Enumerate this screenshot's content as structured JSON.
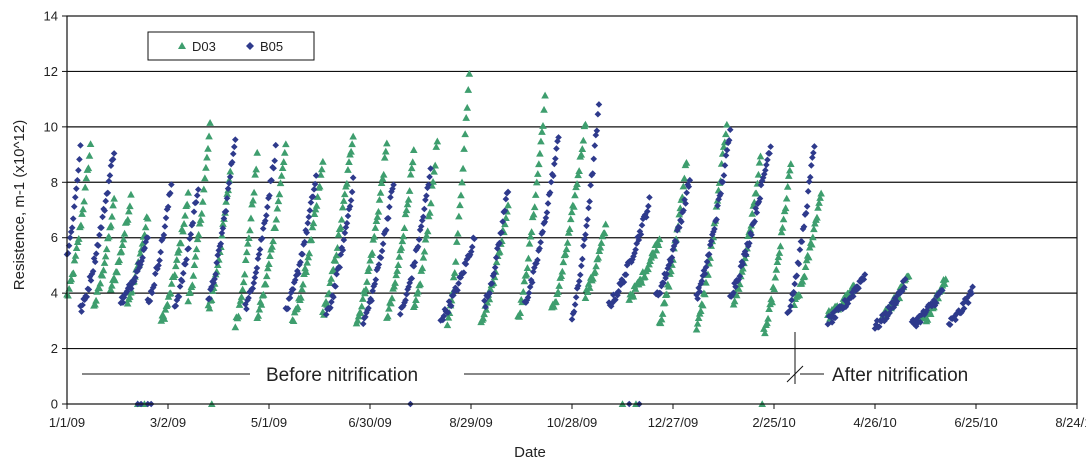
{
  "chart_data": {
    "type": "scatter",
    "title": "",
    "xlabel": "Date",
    "ylabel": "Resistence, m-1 (x10^12)",
    "x_tick_labels": [
      "1/1/09",
      "3/2/09",
      "5/1/09",
      "6/30/09",
      "8/29/09",
      "10/28/09",
      "12/27/09",
      "2/25/10",
      "4/26/10",
      "6/25/10",
      "8/24/10"
    ],
    "x_tick_days": [
      0,
      60,
      120,
      180,
      240,
      300,
      360,
      420,
      480,
      540,
      600
    ],
    "y_ticks": [
      0,
      2,
      4,
      6,
      8,
      10,
      12,
      14
    ],
    "ylim": [
      0,
      14
    ],
    "grid": "horizontal",
    "legend_position": "top-left",
    "annotations": {
      "before": "Before nitrification",
      "after": "After nitrification"
    },
    "colors": {
      "D03": "#3e9e6e",
      "B05": "#2e3a8c"
    },
    "series": [
      {
        "name": "D03",
        "marker": "triangle",
        "cycles": [
          [
            0,
            3.9,
            14,
            9.3
          ],
          [
            16,
            3.6,
            28,
            7.3
          ],
          [
            26,
            4.2,
            38,
            7.5
          ],
          [
            36,
            3.8,
            48,
            6.8
          ],
          [
            56,
            3.0,
            72,
            7.5
          ],
          [
            72,
            3.8,
            85,
            10.0
          ],
          [
            84,
            3.5,
            97,
            8.4
          ],
          [
            100,
            2.9,
            113,
            8.9
          ],
          [
            113,
            3.2,
            130,
            9.4
          ],
          [
            134,
            3.0,
            152,
            8.7
          ],
          [
            152,
            3.3,
            170,
            9.8
          ],
          [
            172,
            3.0,
            190,
            9.3
          ],
          [
            190,
            3.2,
            206,
            9.0
          ],
          [
            206,
            3.4,
            220,
            9.5
          ],
          [
            226,
            2.8,
            239,
            12.0
          ],
          [
            246,
            3.1,
            262,
            7.2
          ],
          [
            268,
            3.2,
            284,
            11.0
          ],
          [
            288,
            3.4,
            308,
            10.2
          ],
          [
            308,
            4.0,
            320,
            6.4
          ],
          [
            334,
            3.9,
            352,
            6.0
          ],
          [
            352,
            3.0,
            368,
            8.8
          ],
          [
            374,
            2.8,
            392,
            10.2
          ],
          [
            396,
            3.7,
            412,
            8.8
          ],
          [
            414,
            2.6,
            430,
            8.7
          ],
          [
            432,
            3.6,
            448,
            7.7
          ],
          [
            452,
            3.2,
            468,
            4.2
          ],
          [
            484,
            3.2,
            500,
            4.6
          ],
          [
            508,
            3.0,
            522,
            4.6
          ]
        ],
        "zeros": [
          42,
          46,
          86,
          330,
          338,
          413
        ]
      },
      {
        "name": "B05",
        "marker": "diamond",
        "cycles": [
          [
            0,
            5.4,
            8,
            9.3
          ],
          [
            8,
            3.4,
            28,
            9.2
          ],
          [
            32,
            3.7,
            48,
            6.0
          ],
          [
            48,
            3.7,
            62,
            7.9
          ],
          [
            64,
            3.6,
            78,
            7.9
          ],
          [
            84,
            3.8,
            100,
            9.7
          ],
          [
            106,
            3.5,
            124,
            9.2
          ],
          [
            130,
            3.4,
            148,
            8.2
          ],
          [
            154,
            3.2,
            170,
            8.0
          ],
          [
            176,
            3.0,
            194,
            8.0
          ],
          [
            198,
            3.3,
            216,
            8.4
          ],
          [
            222,
            3.1,
            242,
            6.0
          ],
          [
            248,
            3.6,
            262,
            7.8
          ],
          [
            272,
            3.7,
            292,
            9.6
          ],
          [
            300,
            3.2,
            316,
            10.7
          ],
          [
            322,
            3.6,
            346,
            7.3
          ],
          [
            350,
            3.9,
            370,
            8.1
          ],
          [
            374,
            3.9,
            394,
            9.8
          ],
          [
            394,
            4.0,
            418,
            9.4
          ],
          [
            428,
            3.3,
            444,
            9.4
          ],
          [
            452,
            3.0,
            474,
            4.7
          ],
          [
            480,
            2.8,
            498,
            4.4
          ],
          [
            502,
            2.9,
            520,
            4.1
          ],
          [
            524,
            2.9,
            538,
            4.1
          ]
        ],
        "zeros": [
          42,
          44,
          48,
          50,
          204,
          334,
          340
        ]
      }
    ]
  }
}
